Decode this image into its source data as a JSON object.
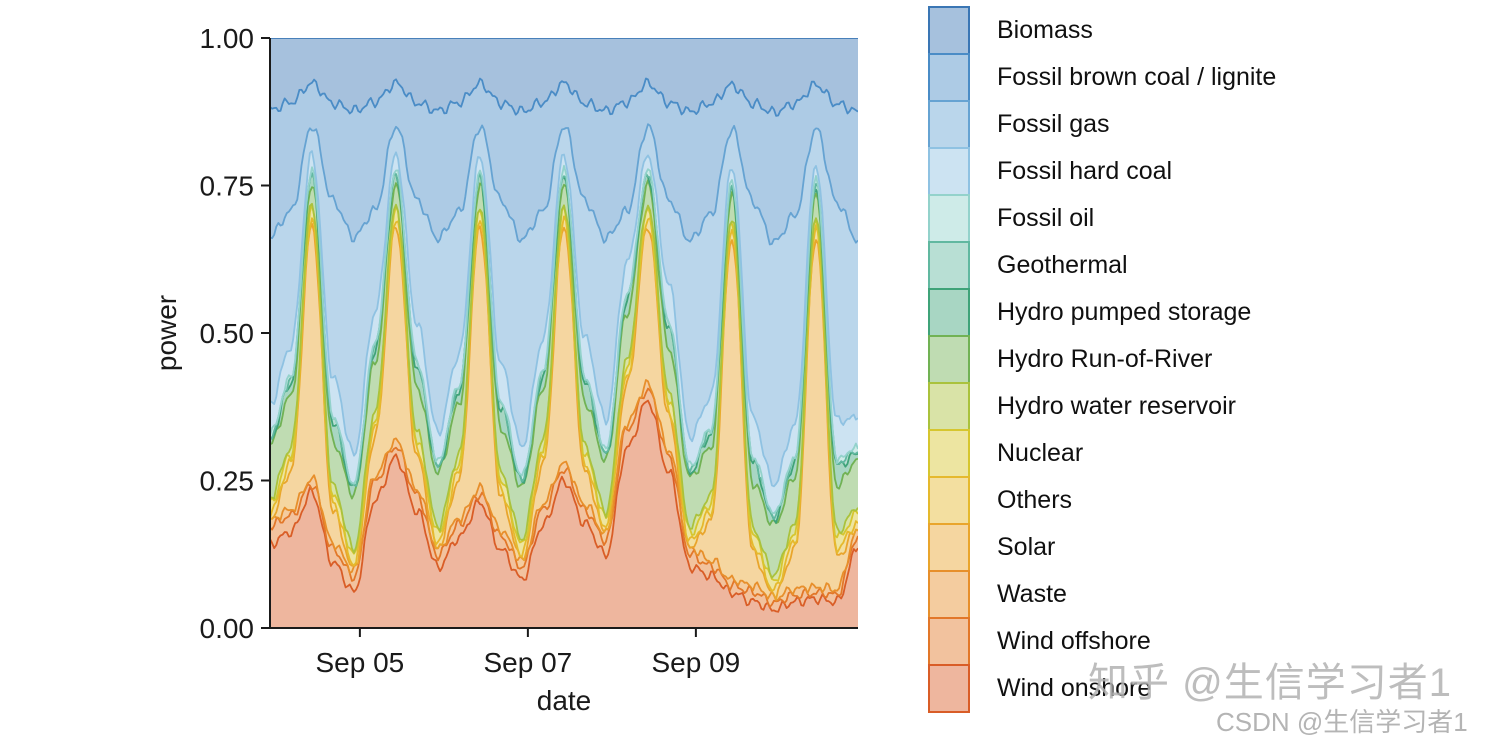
{
  "watermarks": {
    "zhihu": {
      "text": "知乎 @生信学习者1"
    },
    "csdn": {
      "text": "CSDN @生信学习者1"
    }
  },
  "chart_data": {
    "type": "area",
    "stacked": true,
    "normalized": true,
    "title": "",
    "xlabel": "date",
    "ylabel": "power",
    "ylim": [
      0,
      1
    ],
    "grid": false,
    "legend_position": "right",
    "x_span_days": 7,
    "n_points": 29,
    "t_step_days": 0.25,
    "x_ticks": [
      {
        "t": 1.07,
        "label": "Sep 05"
      },
      {
        "t": 3.07,
        "label": "Sep 07"
      },
      {
        "t": 5.07,
        "label": "Sep 09"
      }
    ],
    "y_ticks": [
      {
        "v": 0.0,
        "label": "0.00"
      },
      {
        "v": 0.25,
        "label": "0.25"
      },
      {
        "v": 0.5,
        "label": "0.50"
      },
      {
        "v": 0.75,
        "label": "0.75"
      },
      {
        "v": 1.0,
        "label": "1.00"
      }
    ],
    "stack_order": "series listed top-to-bottom as in legend; areas stacked bottom-to-top in reverse legend order (Wind onshore at bottom, Biomass on top)",
    "series": [
      {
        "name": "Biomass",
        "color": "#3a76b4",
        "values": [
          0.12,
          0.1,
          0.08,
          0.1,
          0.12,
          0.1,
          0.08,
          0.1,
          0.12,
          0.1,
          0.08,
          0.1,
          0.12,
          0.1,
          0.08,
          0.1,
          0.12,
          0.1,
          0.08,
          0.1,
          0.12,
          0.1,
          0.08,
          0.1,
          0.12,
          0.1,
          0.08,
          0.1,
          0.12
        ]
      },
      {
        "name": "Fossil brown coal / lignite",
        "color": "#4a8cc6",
        "values": [
          0.21,
          0.17,
          0.075,
          0.15,
          0.21,
          0.17,
          0.075,
          0.15,
          0.21,
          0.17,
          0.075,
          0.15,
          0.21,
          0.17,
          0.075,
          0.15,
          0.21,
          0.17,
          0.075,
          0.15,
          0.21,
          0.17,
          0.075,
          0.15,
          0.21,
          0.17,
          0.075,
          0.15,
          0.21
        ]
      },
      {
        "name": "Fossil gas",
        "color": "#66a3d2",
        "values": [
          0.28,
          0.21,
          0.05,
          0.27,
          0.36,
          0.16,
          0.05,
          0.19,
          0.32,
          0.22,
          0.05,
          0.25,
          0.34,
          0.2,
          0.05,
          0.21,
          0.3,
          0.08,
          0.05,
          0.13,
          0.32,
          0.28,
          0.06,
          0.33,
          0.39,
          0.32,
          0.06,
          0.33,
          0.29
        ]
      },
      {
        "name": "Fossil hard coal",
        "color": "#8fc2e2",
        "values": [
          0.05,
          0.05,
          0.03,
          0.06,
          0.05,
          0.05,
          0.03,
          0.06,
          0.05,
          0.05,
          0.03,
          0.06,
          0.05,
          0.05,
          0.03,
          0.06,
          0.05,
          0.05,
          0.03,
          0.06,
          0.05,
          0.05,
          0.03,
          0.06,
          0.05,
          0.05,
          0.03,
          0.06,
          0.05
        ]
      },
      {
        "name": "Fossil oil",
        "color": "#93d2cb",
        "values": 0.005
      },
      {
        "name": "Geothermal",
        "color": "#61b8a0",
        "values": 0.003
      },
      {
        "name": "Hydro pumped storage",
        "color": "#3fa379",
        "values": [
          0.008,
          0.02,
          0.015,
          0.03,
          0.008,
          0.02,
          0.015,
          0.03,
          0.008,
          0.02,
          0.015,
          0.03,
          0.008,
          0.02,
          0.015,
          0.03,
          0.008,
          0.02,
          0.015,
          0.03,
          0.008,
          0.02,
          0.015,
          0.03,
          0.008,
          0.02,
          0.015,
          0.03,
          0.008
        ]
      },
      {
        "name": "Hydro Run-of-River",
        "color": "#71b254",
        "values": [
          0.09,
          0.08,
          0.035,
          0.07,
          0.09,
          0.08,
          0.035,
          0.07,
          0.09,
          0.08,
          0.035,
          0.07,
          0.085,
          0.08,
          0.035,
          0.07,
          0.085,
          0.075,
          0.035,
          0.07,
          0.08,
          0.075,
          0.035,
          0.07,
          0.08,
          0.075,
          0.035,
          0.07,
          0.08
        ]
      },
      {
        "name": "Hydro water reservoir",
        "color": "#aac23c",
        "values": 0.01
      },
      {
        "name": "Nuclear",
        "color": "#d6c62f",
        "values": 0.015
      },
      {
        "name": "Others",
        "color": "#e5b92d",
        "values": 0.012
      },
      {
        "name": "Solar",
        "color": "#e9a52c",
        "values": [
          0,
          0.06,
          0.45,
          0.05,
          0,
          0.06,
          0.38,
          0.05,
          0,
          0.06,
          0.46,
          0.05,
          0,
          0.06,
          0.42,
          0.05,
          0,
          0.06,
          0.28,
          0.05,
          0,
          0.06,
          0.58,
          0.05,
          0,
          0.06,
          0.6,
          0.05,
          0
        ]
      },
      {
        "name": "Waste",
        "color": "#e78f2b",
        "values": 0.009
      },
      {
        "name": "Wind offshore",
        "color": "#e27729",
        "values": [
          0.03,
          0.025,
          0.015,
          0.02,
          0.025,
          0.03,
          0.02,
          0.025,
          0.02,
          0.02,
          0.015,
          0.02,
          0.02,
          0.025,
          0.02,
          0.02,
          0.025,
          0.03,
          0.02,
          0.025,
          0.02,
          0.015,
          0.012,
          0.015,
          0.01,
          0.01,
          0.01,
          0.01,
          0.02
        ]
      },
      {
        "name": "Wind onshore",
        "color": "#d95d27",
        "values": [
          0.14,
          0.15,
          0.24,
          0.1,
          0.06,
          0.2,
          0.3,
          0.18,
          0.1,
          0.14,
          0.22,
          0.12,
          0.08,
          0.16,
          0.26,
          0.16,
          0.12,
          0.28,
          0.4,
          0.24,
          0.1,
          0.08,
          0.06,
          0.04,
          0.03,
          0.04,
          0.05,
          0.04,
          0.13
        ]
      }
    ]
  }
}
